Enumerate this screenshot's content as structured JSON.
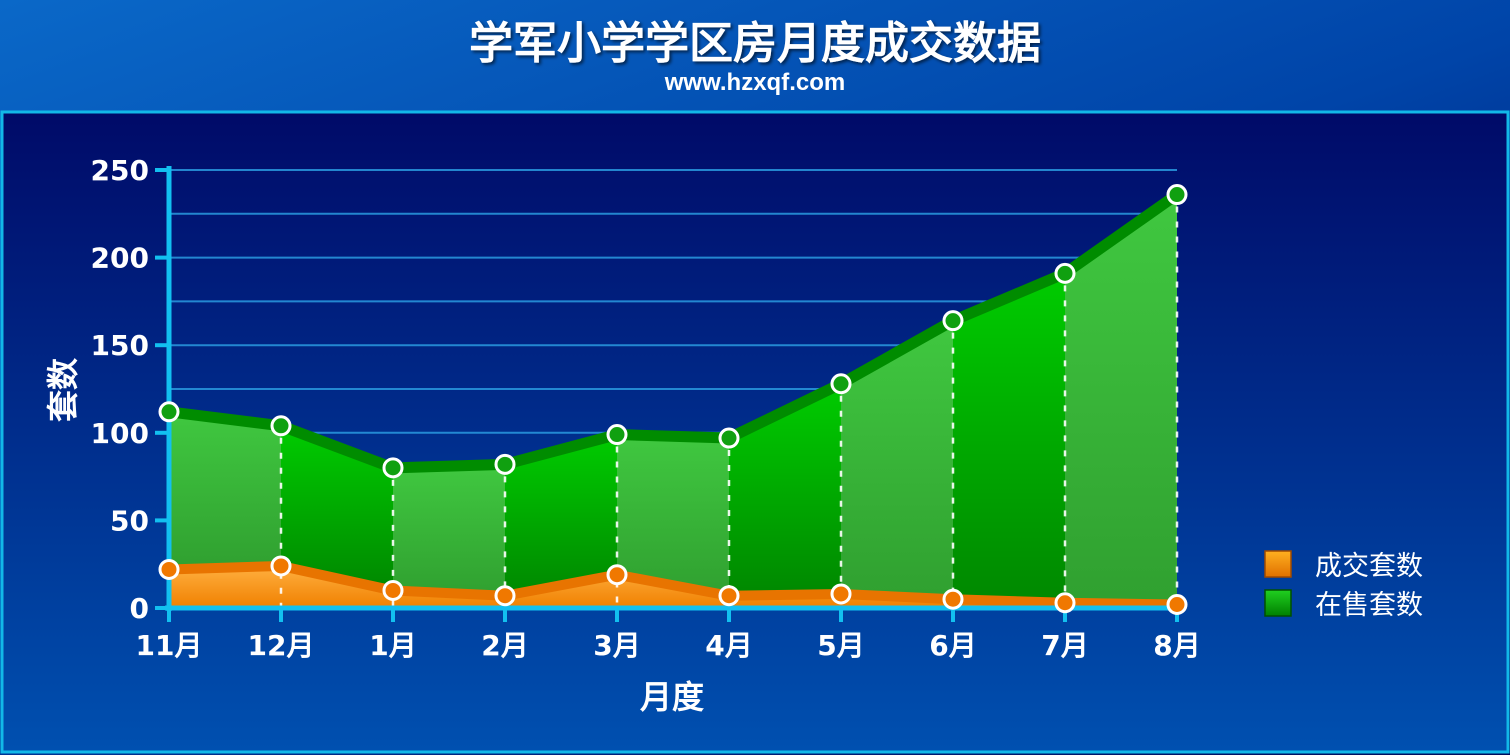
{
  "chart_data": {
    "type": "area",
    "title": "学军小学学区房月度成交数据",
    "subtitle": "www.hzxqf.com",
    "xlabel": "月度",
    "ylabel": "套数",
    "categories": [
      "11月",
      "12月",
      "1月",
      "2月",
      "3月",
      "4月",
      "5月",
      "6月",
      "7月",
      "8月"
    ],
    "ylim": [
      0,
      250
    ],
    "yticks": [
      0,
      50,
      100,
      150,
      200,
      250
    ],
    "grid": true,
    "legend_position": "right",
    "series": [
      {
        "name": "成交套数",
        "color": "#f08000",
        "values": [
          22,
          24,
          10,
          7,
          19,
          7,
          8,
          5,
          3,
          2
        ]
      },
      {
        "name": "在售套数",
        "color": "#00a000",
        "values": [
          112,
          104,
          80,
          82,
          99,
          97,
          128,
          164,
          191,
          236
        ]
      }
    ]
  }
}
